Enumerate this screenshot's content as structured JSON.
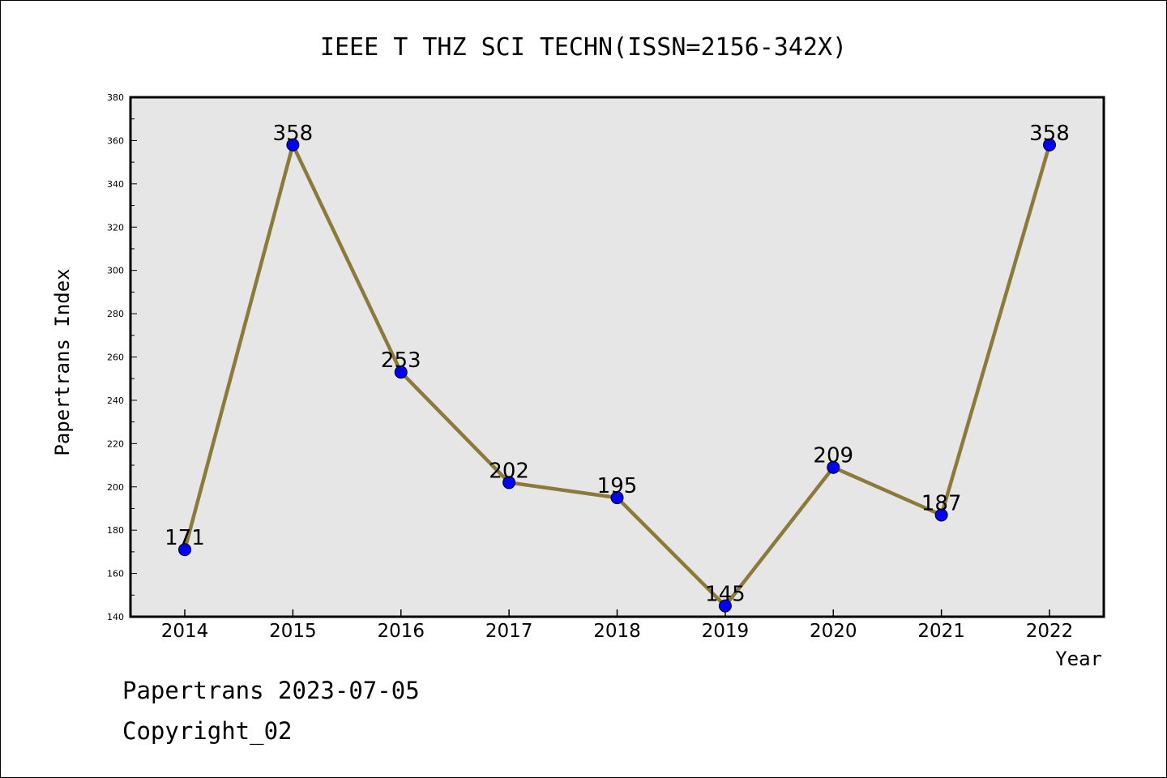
{
  "chart_data": {
    "type": "line",
    "title": "IEEE T THZ SCI TECHN(ISSN=2156-342X)",
    "xlabel": "Year",
    "ylabel": "Papertrans Index",
    "categories": [
      "2014",
      "2015",
      "2016",
      "2017",
      "2018",
      "2019",
      "2020",
      "2021",
      "2022"
    ],
    "series": [
      {
        "values": [
          171,
          358,
          253,
          202,
          195,
          145,
          209,
          187,
          358
        ]
      }
    ],
    "data_labels": [
      "171",
      "358",
      "253",
      "202",
      "195",
      "145",
      "209",
      "187",
      "358"
    ],
    "ylim": [
      140,
      380
    ],
    "yticks": [
      140,
      160,
      180,
      200,
      220,
      240,
      260,
      280,
      300,
      320,
      340,
      360,
      380
    ],
    "ytick_labels": [
      "140",
      "160",
      "180",
      "200",
      "220",
      "240",
      "260",
      "280",
      "300",
      "320",
      "340",
      "360",
      "380"
    ],
    "grid": false,
    "colors": {
      "line": "#8b7a3a",
      "marker": "#0000ff",
      "marker_edge": "#000000",
      "plot_background": "#e6e6e6"
    }
  },
  "footer": {
    "line1": "Papertrans 2023-07-05",
    "line2": "Copyright_02"
  }
}
